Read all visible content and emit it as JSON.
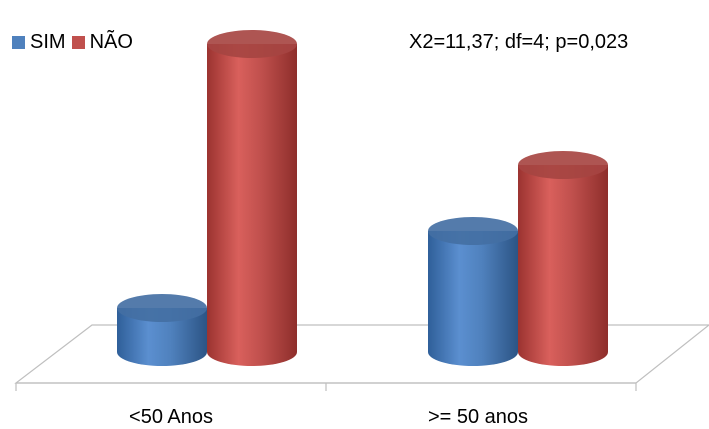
{
  "chart_data": {
    "type": "bar",
    "style": "3d-cylinder",
    "categories": [
      "<50 Anos",
      ">= 50 anos"
    ],
    "series": [
      {
        "name": "SIM",
        "color": "#4f81bd",
        "values": [
          8,
          22
        ]
      },
      {
        "name": "NÃO",
        "color": "#c0504d",
        "values": [
          56,
          34
        ]
      }
    ],
    "annotation": "X2=11,37; df=4; p=0,023",
    "legend": "top-left",
    "grid": false,
    "ylim": [
      0,
      60
    ]
  }
}
